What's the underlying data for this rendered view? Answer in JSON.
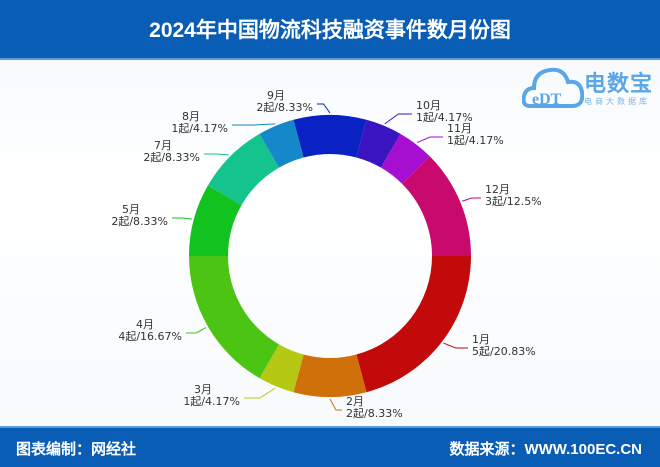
{
  "header": {
    "title": "2024年中国物流科技融资事件数月份图"
  },
  "logo": {
    "name": "电数宝",
    "subtitle": "电商大数据库",
    "mark": "eDT"
  },
  "footer": {
    "left": "图表编制：网经社",
    "right": "数据来源：WWW.100EC.CN"
  },
  "chart_data": {
    "type": "pie",
    "donut": true,
    "title": "2024年中国物流科技融资事件数月份图",
    "unit": "起",
    "categories": [
      "1月",
      "2月",
      "3月",
      "4月",
      "5月",
      "7月",
      "8月",
      "9月",
      "10月",
      "11月",
      "12月"
    ],
    "values": [
      5,
      2,
      1,
      4,
      2,
      2,
      1,
      2,
      1,
      1,
      3
    ],
    "labels": [
      "5起/20.83%",
      "2起/8.33%",
      "1起/4.17%",
      "4起/16.67%",
      "2起/8.33%",
      "2起/8.33%",
      "1起/4.17%",
      "2起/8.33%",
      "1起/4.17%",
      "1起/4.17%",
      "3起/12.5%"
    ],
    "colors": [
      "#c20a0a",
      "#d0700a",
      "#b4c814",
      "#4cc414",
      "#12c21e",
      "#14c48c",
      "#1488c8",
      "#0a22c4",
      "#3a14c0",
      "#a60fd0",
      "#c80a6c"
    ]
  }
}
